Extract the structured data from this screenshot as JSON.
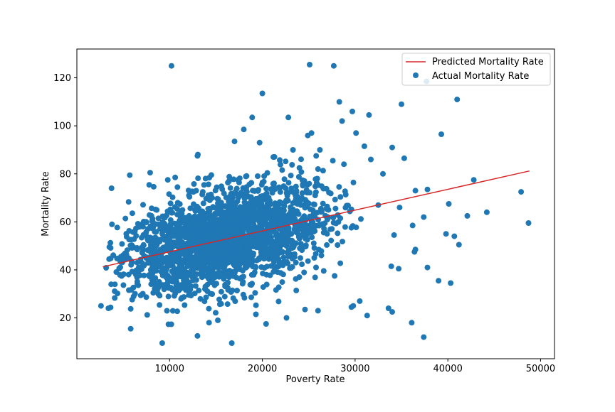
{
  "chart_data": {
    "type": "scatter",
    "title": "",
    "xlabel": "Poverty Rate",
    "ylabel": "Mortality Rate",
    "xlim": [
      0,
      51500
    ],
    "ylim": [
      3,
      132
    ],
    "xticks": [
      10000,
      20000,
      30000,
      40000,
      50000
    ],
    "xtick_labels": [
      "10000",
      "20000",
      "30000",
      "40000",
      "50000"
    ],
    "yticks": [
      20,
      40,
      60,
      80,
      100,
      120
    ],
    "ytick_labels": [
      "20",
      "40",
      "60",
      "80",
      "100",
      "120"
    ],
    "grid": false,
    "legend": {
      "placement": "top-right",
      "entries": [
        "Predicted Mortality Rate",
        "Actual Mortality Rate"
      ]
    },
    "series": [
      {
        "name": "Predicted Mortality Rate",
        "kind": "line",
        "color": "#d62728",
        "x": [
          2800,
          48800
        ],
        "y": [
          41.3,
          81.2
        ]
      },
      {
        "name": "Actual Mortality Rate",
        "kind": "scatter",
        "color": "#1f77b4",
        "approx_point_count": 2200,
        "x": [
          10200,
          25100,
          27700,
          37700,
          41000,
          20000,
          28300,
          35000,
          29700,
          31500,
          39300,
          18900,
          28600,
          18000,
          30100,
          22800,
          24900,
          19700,
          17000,
          23300,
          25300,
          26200,
          31000,
          34000,
          35300,
          25800,
          13000,
          27600,
          31700,
          26000,
          33000,
          42800,
          14500,
          7900,
          9800,
          10600,
          24000,
          28800,
          37800,
          36500,
          47900,
          40100,
          32500,
          34800,
          42100,
          40700,
          39800,
          41200,
          48700,
          36200,
          34200,
          44200,
          4100,
          37800,
          34700,
          33900,
          36500,
          39000,
          40300,
          37400,
          36400,
          31300,
          36100,
          37400,
          29600,
          33600,
          34000,
          29800,
          30500,
          26000,
          24600,
          19300,
          22600,
          15200,
          13000,
          9200,
          5800,
          2600,
          3400,
          3700,
          8100,
          9600,
          16700,
          20400
        ],
        "y": [
          125,
          125.5,
          125,
          118.5,
          111,
          113.5,
          110,
          109,
          106,
          104.5,
          96.5,
          103.5,
          102,
          98.5,
          97,
          103.5,
          96,
          93,
          93.5,
          90,
          97,
          90,
          91.5,
          91,
          86.5,
          87.5,
          87.5,
          85.5,
          86,
          82,
          80,
          77.5,
          79.5,
          80.5,
          77.5,
          78.5,
          82.5,
          84,
          73.5,
          73,
          72.5,
          67.5,
          67,
          66,
          62.5,
          54,
          55,
          50.5,
          59.5,
          58.5,
          54.5,
          64,
          34,
          41,
          40.5,
          41.5,
          48.5,
          35.5,
          34.5,
          62,
          47.5,
          21,
          18,
          12,
          24.5,
          24,
          22.5,
          25,
          27,
          23,
          23.5,
          21.5,
          20,
          19,
          12.5,
          9.5,
          15.5,
          25,
          24,
          34,
          36,
          37,
          9.5,
          17.5
        ]
      }
    ]
  }
}
